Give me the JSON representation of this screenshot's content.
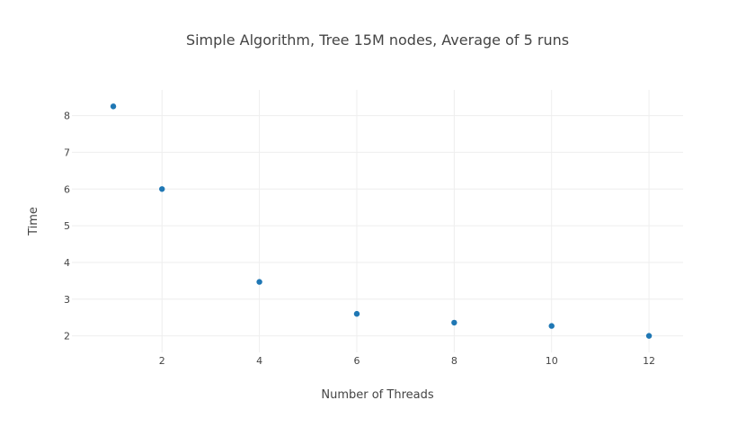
{
  "chart_data": {
    "type": "scatter",
    "title": "Simple Algorithm, Tree 15M nodes, Average of 5 runs",
    "xlabel": "Number of Threads",
    "ylabel": "Time",
    "x": [
      1,
      2,
      4,
      6,
      8,
      10,
      12
    ],
    "y": [
      8.25,
      6.0,
      3.47,
      2.6,
      2.36,
      2.27,
      2.0
    ],
    "xlim": [
      0.15,
      12.7
    ],
    "ylim": [
      1.55,
      8.7
    ],
    "xticks": [
      2,
      4,
      6,
      8,
      10,
      12
    ],
    "yticks": [
      2,
      3,
      4,
      5,
      6,
      7,
      8
    ],
    "grid": true,
    "marker_color": "#1f77b4"
  }
}
